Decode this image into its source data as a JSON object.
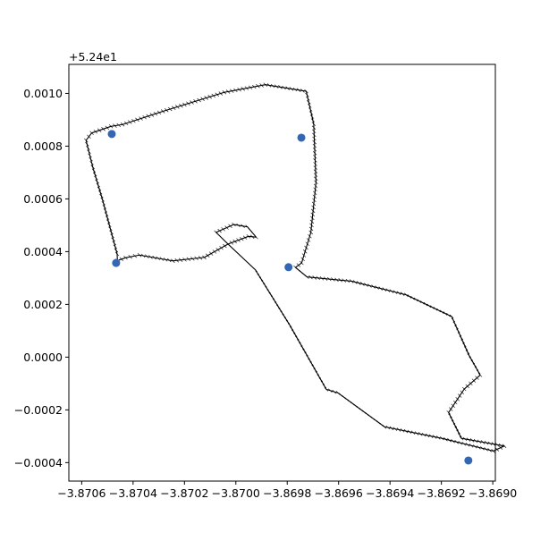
{
  "chart_data": {
    "type": "scatter",
    "axis_offset_text": "+5.24e1",
    "xlim": [
      -3.87065,
      -3.86899
    ],
    "ylim": [
      -0.00047,
      0.00111
    ],
    "x_ticks": [
      -3.8706,
      -3.8704,
      -3.8702,
      -3.87,
      -3.8698,
      -3.8696,
      -3.8694,
      -3.8692,
      -3.869
    ],
    "x_tick_labels": [
      "−3.8706",
      "−3.8704",
      "−3.8702",
      "−3.8700",
      "−3.8698",
      "−3.8696",
      "−3.8694",
      "−3.8692",
      "−3.8690"
    ],
    "y_ticks": [
      -0.0004,
      -0.0002,
      0.0,
      0.0002,
      0.0004,
      0.0006,
      0.0008,
      0.001
    ],
    "y_tick_labels": [
      "−0.0004",
      "−0.0002",
      "0.0000",
      "0.0002",
      "0.0004",
      "0.0006",
      "0.0008",
      "0.0010"
    ],
    "grid": false,
    "points": {
      "color": "#3366b3",
      "x": [
        -3.870483,
        -3.869745,
        -3.870466,
        -3.869795,
        -3.869095
      ],
      "y": [
        0.000846,
        0.000832,
        0.000357,
        0.000341,
        -0.000392
      ]
    },
    "track": {
      "color": "#000000",
      "x": [
        -3.870486,
        -3.870441,
        -3.870284,
        -3.870045,
        -3.869885,
        -3.869726,
        -3.869697,
        -3.869688,
        -3.869708,
        -3.869744,
        -3.869768,
        -3.869723,
        -3.86955,
        -3.869337,
        -3.86916,
        -3.869092,
        -3.869049,
        -3.869111,
        -3.869172,
        -3.869122,
        -3.868955,
        -3.868998,
        -3.869198,
        -3.869422,
        -3.869602,
        -3.869648,
        -3.86979,
        -3.869924,
        -3.870033,
        -3.870077,
        -3.870008,
        -3.869955,
        -3.869921,
        -3.869951,
        -3.87003,
        -3.870123,
        -3.870245,
        -3.870375,
        -3.870429,
        -3.870461,
        -3.870462,
        -3.870519,
        -3.870557,
        -3.870583,
        -3.870561,
        -3.870486
      ],
      "y": [
        0.000875,
        0.000882,
        0.000932,
        0.001004,
        0.001033,
        0.001008,
        0.000884,
        0.000663,
        0.000473,
        0.000357,
        0.00034,
        0.000304,
        0.000288,
        0.000236,
        0.000154,
        6e-06,
        -6.8e-05,
        -0.000121,
        -0.00021,
        -0.000308,
        -0.000337,
        -0.000356,
        -0.000308,
        -0.000264,
        -0.000136,
        -0.000122,
        0.000121,
        0.000331,
        0.000431,
        0.000473,
        0.000503,
        0.000494,
        0.000455,
        0.000458,
        0.000429,
        0.000378,
        0.000365,
        0.000387,
        0.000377,
        0.000366,
        0.000391,
        0.000597,
        0.000721,
        0.000822,
        0.00085,
        0.000875
      ]
    }
  }
}
